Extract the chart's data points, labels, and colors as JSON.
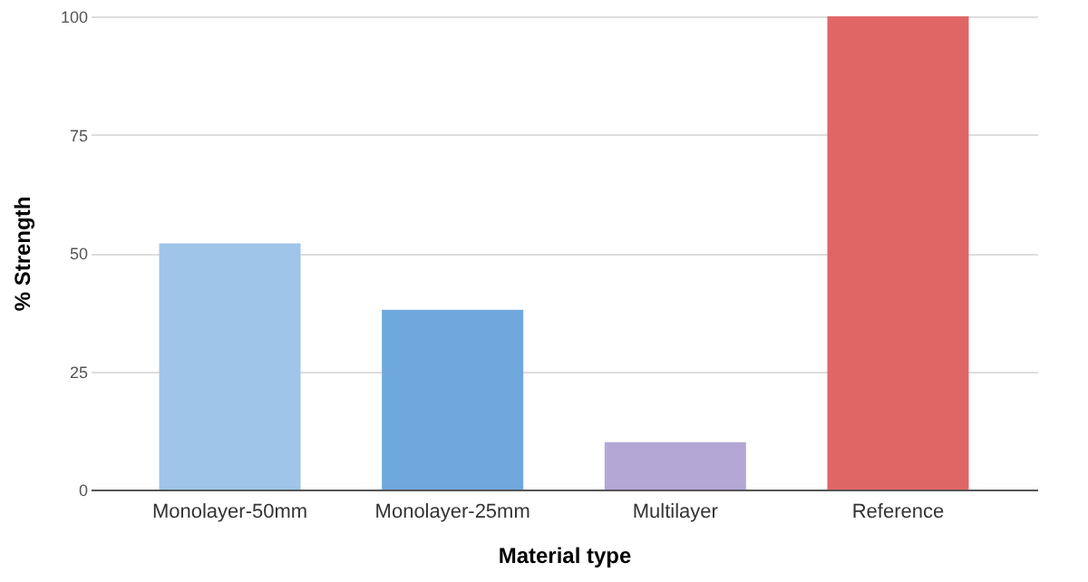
{
  "chart_data": {
    "type": "bar",
    "xlabel": "Material type",
    "ylabel": "% Strength",
    "categories": [
      "Monolayer-50mm",
      "Monolayer-25mm",
      "Multilayer",
      "Reference"
    ],
    "values": [
      52,
      38,
      10,
      100
    ],
    "colors": [
      "#9fc5e8",
      "#6fa8dc",
      "#b4a7d6",
      "#e06666"
    ],
    "ylim": [
      0,
      100
    ],
    "yticks": [
      0,
      25,
      50,
      75,
      100
    ],
    "grid": "y",
    "legend": false
  }
}
